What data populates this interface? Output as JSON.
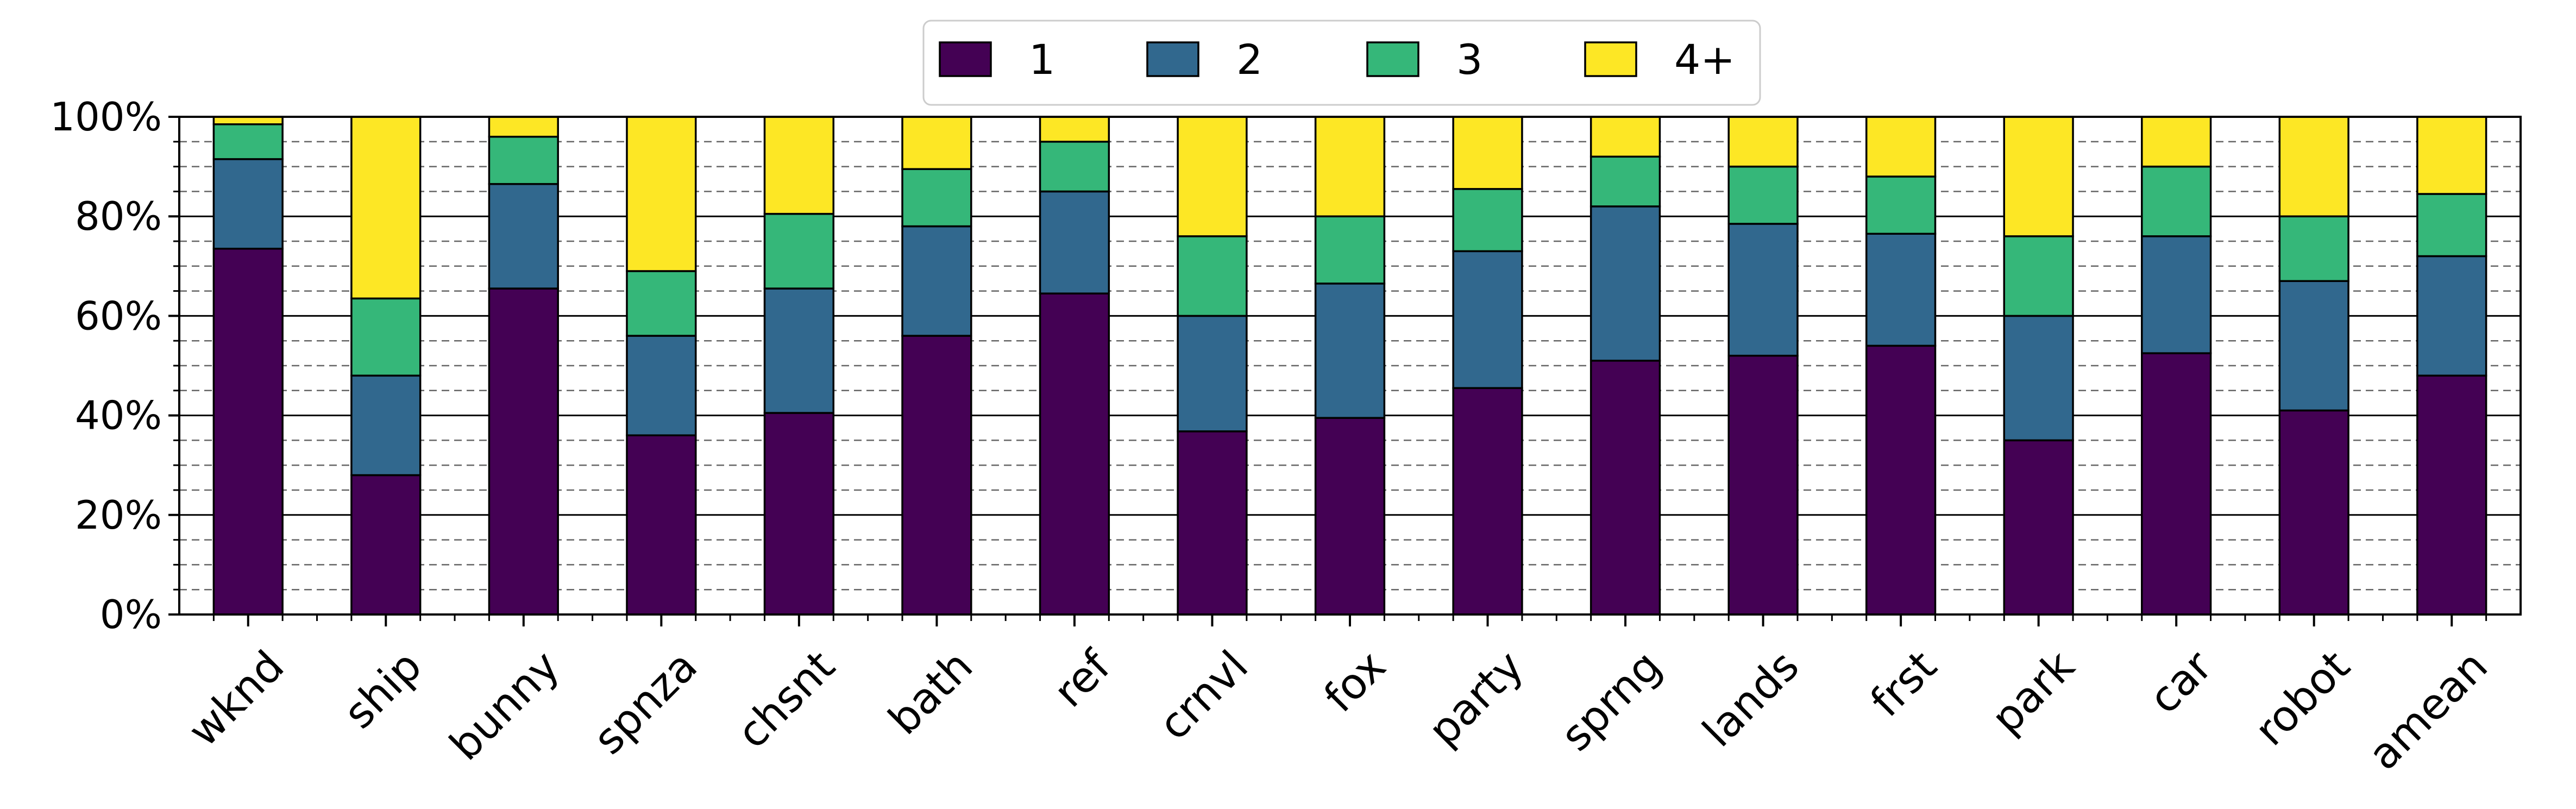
{
  "chart_data": {
    "type": "bar",
    "stacked": true,
    "categories": [
      "wknd",
      "ship",
      "bunny",
      "spnza",
      "chsnt",
      "bath",
      "ref",
      "crnvl",
      "fox",
      "party",
      "sprng",
      "lands",
      "frst",
      "park",
      "car",
      "robot",
      "amean"
    ],
    "series": [
      {
        "name": "1",
        "color": "#440154",
        "values": [
          73.5,
          28,
          65.5,
          36,
          40.5,
          56,
          64.5,
          36.8,
          39.5,
          45.5,
          51,
          52,
          54,
          35,
          52.5,
          41,
          48
        ]
      },
      {
        "name": "2",
        "color": "#31688e",
        "values": [
          18,
          20,
          21,
          20,
          25,
          22,
          20.5,
          23.2,
          27,
          27.5,
          31,
          26.5,
          22.5,
          25,
          23.5,
          26,
          24
        ]
      },
      {
        "name": "3",
        "color": "#35b779",
        "values": [
          7,
          15.5,
          9.5,
          13,
          15,
          11.5,
          10,
          16,
          13.5,
          12.5,
          10,
          11.5,
          11.5,
          16,
          14,
          13,
          12.5
        ]
      },
      {
        "name": "4+",
        "color": "#fde725",
        "values": [
          1.5,
          36.5,
          4,
          31,
          19.5,
          10.5,
          5,
          24,
          20,
          14.5,
          8,
          10,
          12,
          24,
          10,
          20,
          15.5
        ]
      }
    ],
    "y_ticks": [
      "0%",
      "20%",
      "40%",
      "60%",
      "80%",
      "100%"
    ],
    "ylim": [
      0,
      100
    ],
    "xlabel": "",
    "ylabel": "",
    "grid": true,
    "legend_position": "top-center"
  }
}
